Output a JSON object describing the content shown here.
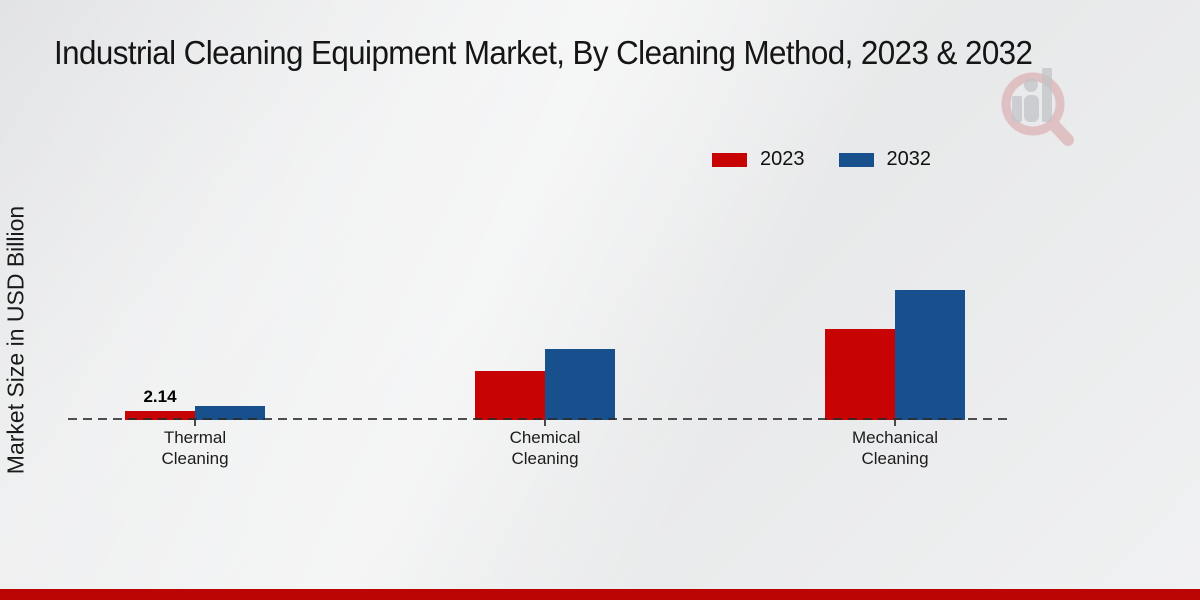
{
  "page": {
    "title": "Industrial Cleaning Equipment Market, By Cleaning Method, 2023 & 2032",
    "watermark_icon": "magnifier-people-bars-logo"
  },
  "colors": {
    "series_2023": "#c70403",
    "series_2032": "#17508c",
    "bottom_strip": "#ba0503",
    "axis_line": "#2a2a2a",
    "background": "#ebeced",
    "watermark_ring": "#d98d91",
    "watermark_gray": "#c2c4c8"
  },
  "chart_data": {
    "type": "bar",
    "title": "Industrial Cleaning Equipment Market, By Cleaning Method, 2023 & 2032",
    "xlabel": "",
    "ylabel": "Market Size in USD Billion",
    "categories": [
      "Thermal Cleaning",
      "Chemical Cleaning",
      "Mechanical Cleaning"
    ],
    "series": [
      {
        "name": "2023",
        "color": "#c70403",
        "values": [
          2.14,
          12.0,
          22.1
        ],
        "data_labels": [
          "2.14",
          "",
          ""
        ]
      },
      {
        "name": "2032",
        "color": "#17508c",
        "values": [
          3.3,
          17.3,
          31.7
        ],
        "data_labels": [
          "",
          "",
          ""
        ]
      }
    ],
    "ylim": [
      0,
      35
    ],
    "grid": false,
    "legend_position": "top-right",
    "baseline_style": "dashed",
    "units": "USD Billion"
  }
}
